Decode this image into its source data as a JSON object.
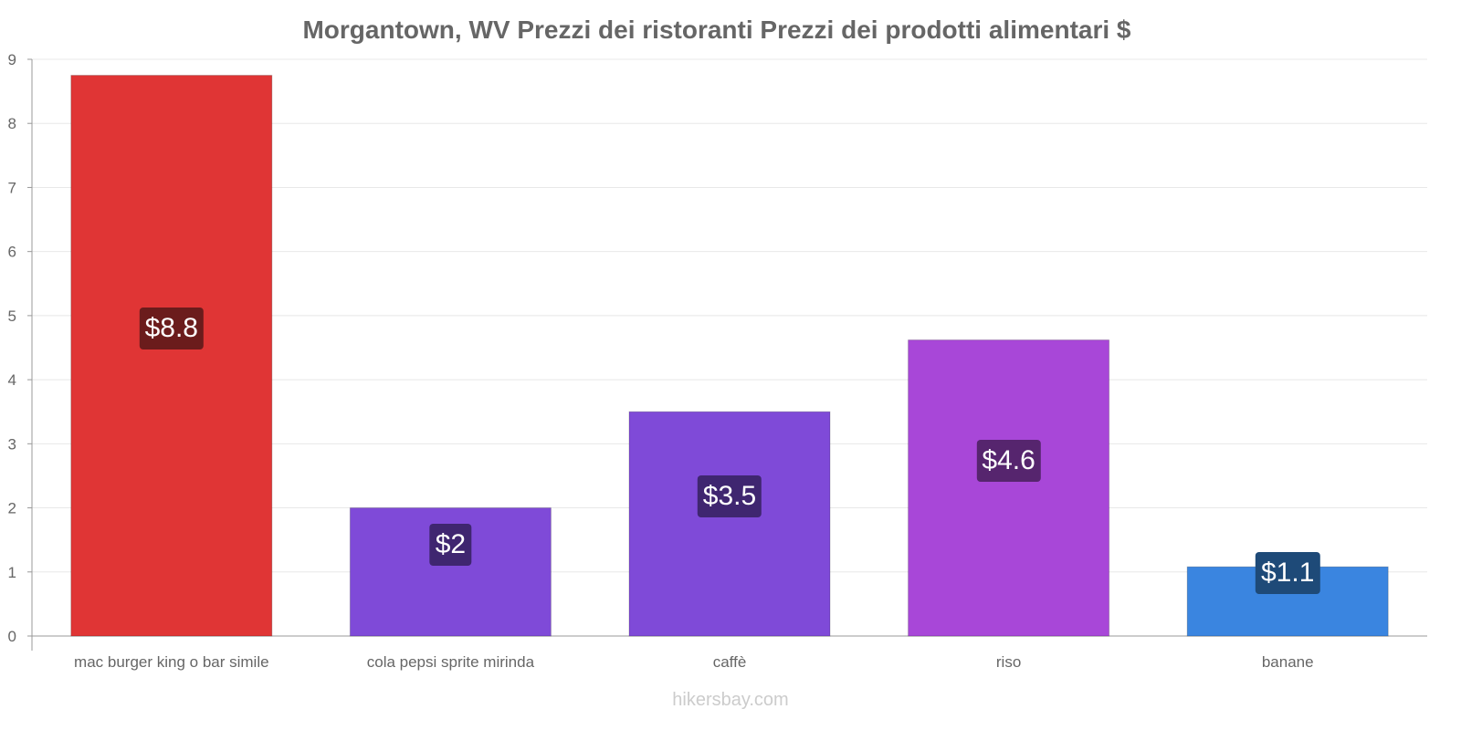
{
  "chart_data": {
    "type": "bar",
    "title": "Morgantown, WV Prezzi dei ristoranti Prezzi dei prodotti alimentari $",
    "categories": [
      "mac burger king o bar simile",
      "cola pepsi sprite mirinda",
      "caffè",
      "riso",
      "banane"
    ],
    "values": [
      8.75,
      2.0,
      3.5,
      4.62,
      1.08
    ],
    "data_labels": [
      "$8.8",
      "$2",
      "$3.5",
      "$4.6",
      "$1.1"
    ],
    "colors": [
      "#e03535",
      "#7f4ad8",
      "#7f4ad8",
      "#a847d8",
      "#3a85e0"
    ],
    "label_colors": [
      "#6b1c1c",
      "#3f2670",
      "#3f2670",
      "#56256e",
      "#1e4a78"
    ],
    "ylim": [
      0,
      9
    ],
    "yticks": [
      "0",
      "1",
      "2",
      "3",
      "4",
      "5",
      "6",
      "7",
      "8",
      "9"
    ],
    "grid": true,
    "xlabel": "",
    "ylabel": ""
  },
  "watermark": "hikersbay.com"
}
